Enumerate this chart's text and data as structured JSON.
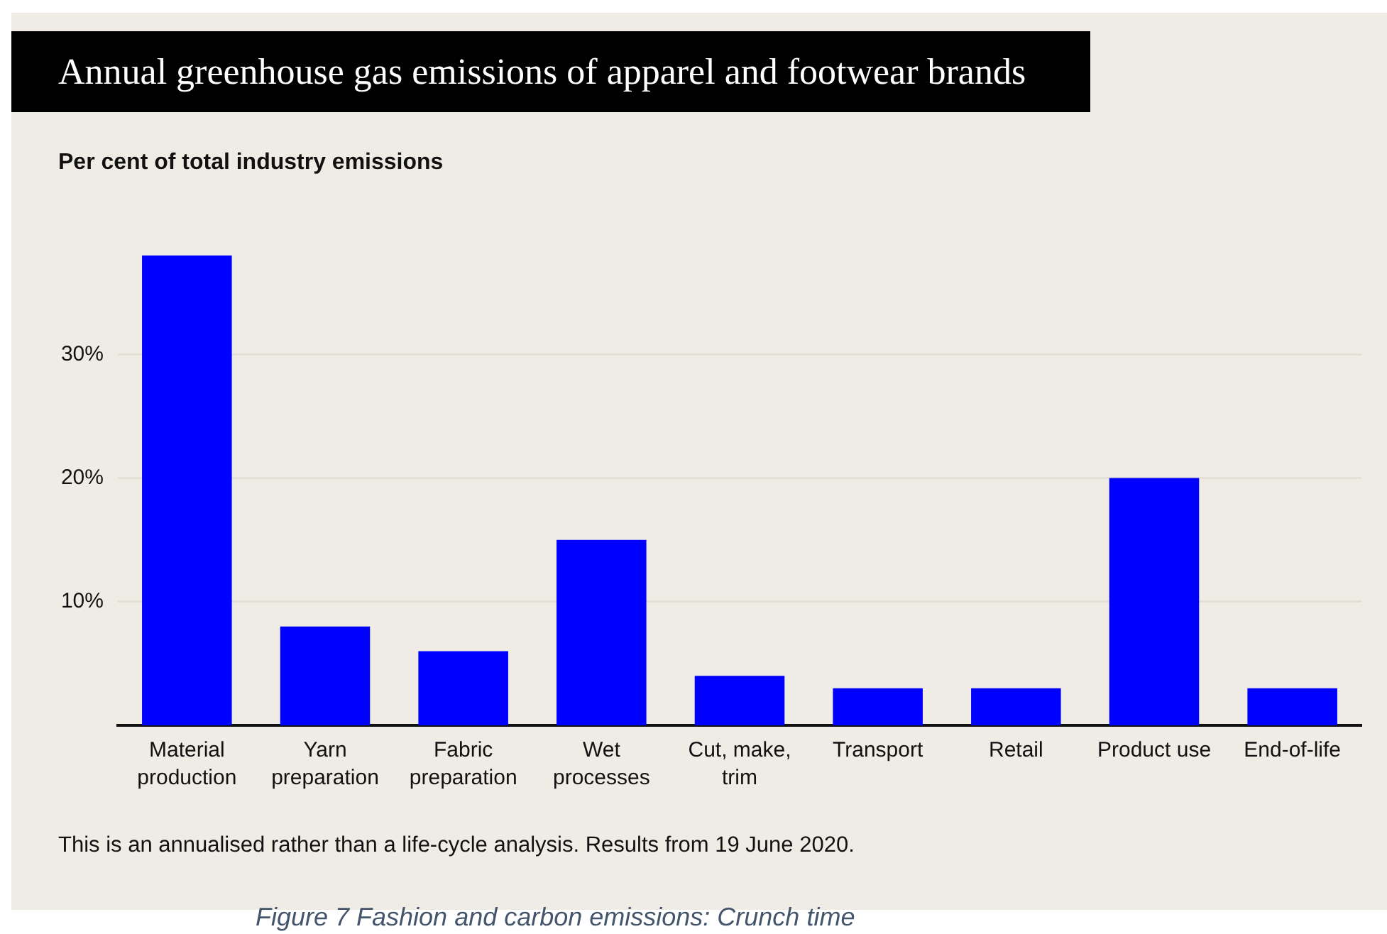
{
  "chart_data": {
    "type": "bar",
    "title": "Annual greenhouse gas emissions of apparel and footwear brands",
    "subtitle": "Per cent of total industry emissions",
    "categories": [
      "Material production",
      "Yarn preparation",
      "Fabric preparation",
      "Wet processes",
      "Cut, make, trim",
      "Transport",
      "Retail",
      "Product use",
      "End-of-life"
    ],
    "values": [
      38,
      8,
      6,
      15,
      4,
      3,
      3,
      20,
      3
    ],
    "color": "#0000ff",
    "ylim": [
      0,
      38
    ],
    "yticks": [
      {
        "value": 10,
        "label": "10%"
      },
      {
        "value": 20,
        "label": "20%"
      },
      {
        "value": 30,
        "label": "30%"
      }
    ],
    "grid": "y",
    "annotations": [
      "This is an annualised rather than a life-cycle analysis. Results from 19 June 2020.",
      "Figure 7 Fashion and carbon emissions: Crunch time"
    ]
  }
}
